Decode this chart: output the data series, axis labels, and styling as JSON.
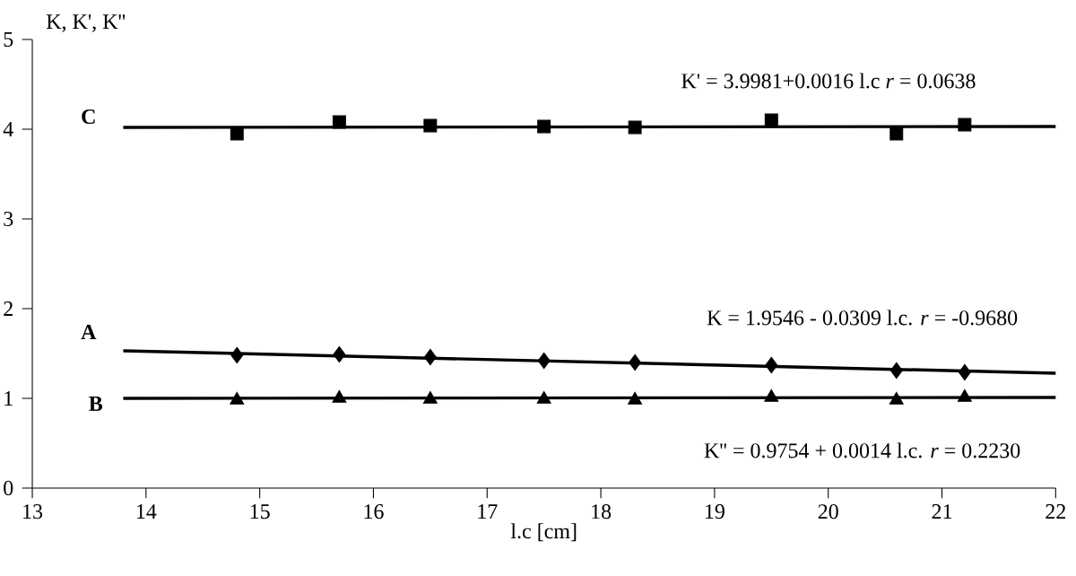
{
  "chart_data": {
    "type": "scatter",
    "xlabel": "l.c [cm]",
    "ylabel": "K, K', K''",
    "xlim": [
      13,
      22
    ],
    "xticks": [
      13,
      14,
      15,
      16,
      17,
      18,
      19,
      20,
      21,
      22
    ],
    "ylim": [
      0,
      5
    ],
    "yticks": [
      0,
      1,
      2,
      3,
      4,
      5
    ],
    "grid": false,
    "series": [
      {
        "marker": "square",
        "color": "#000000",
        "x": [
          14.8,
          15.7,
          16.5,
          17.5,
          18.3,
          19.5,
          20.6,
          21.2
        ],
        "values": [
          3.95,
          4.08,
          4.04,
          4.03,
          4.02,
          4.1,
          3.95,
          4.05
        ]
      },
      {
        "marker": "diamond",
        "color": "#000000",
        "x": [
          14.8,
          15.7,
          16.5,
          17.5,
          18.3,
          19.5,
          20.6,
          21.2
        ],
        "values": [
          1.48,
          1.49,
          1.46,
          1.42,
          1.4,
          1.37,
          1.31,
          1.29
        ]
      },
      {
        "marker": "triangle",
        "color": "#000000",
        "x": [
          14.8,
          15.7,
          16.5,
          17.5,
          18.3,
          19.5,
          20.6,
          21.2
        ],
        "values": [
          0.98,
          1.0,
          0.99,
          0.99,
          0.98,
          1.01,
          0.98,
          1.01
        ]
      },
      {
        "type": "line",
        "line_style": "solid",
        "color": "#000000",
        "x": [
          13.8,
          22
        ],
        "values": [
          4.02,
          4.03
        ]
      },
      {
        "type": "line",
        "line_style": "solid",
        "color": "#000000",
        "x": [
          13.8,
          22
        ],
        "values": [
          1.53,
          1.28
        ]
      },
      {
        "type": "line",
        "line_style": "solid",
        "color": "#000000",
        "x": [
          13.8,
          22
        ],
        "values": [
          1.0,
          1.01
        ]
      }
    ],
    "annotations": [
      "C",
      "A",
      "B",
      "K' = 3.9981+0.0016 l.c    *r* = 0.0638",
      "K = 1.9546 - 0.0309 l.c.    *r* = -0.9680",
      "K'' = 0.9754 + 0.0014 l.c.  *r* = 0.2230"
    ]
  }
}
